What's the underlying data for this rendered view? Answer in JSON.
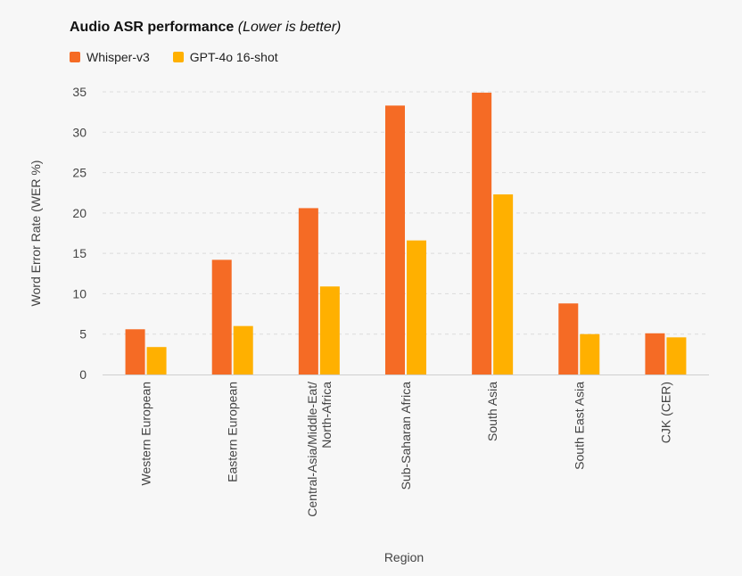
{
  "chart_data": {
    "type": "bar",
    "title": "Audio ASR performance",
    "subtitle": "(Lower is better)",
    "xlabel": "Region",
    "ylabel": "Word Error Rate (WER %)",
    "ylim": [
      0,
      35
    ],
    "yticks": [
      0,
      5,
      10,
      15,
      20,
      25,
      30,
      35
    ],
    "grid": true,
    "legend_position": "top-left",
    "categories": [
      [
        "Western European"
      ],
      [
        "Eastern European"
      ],
      [
        "Central-Asia/Middle-Eat/",
        "North-Africa"
      ],
      [
        "Sub-Saharan Africa"
      ],
      [
        "South Asia"
      ],
      [
        "South East Asia"
      ],
      [
        "CJK (CER)"
      ]
    ],
    "series": [
      {
        "name": "Whisper-v3",
        "color": "#f56b25",
        "values": [
          5.6,
          14.2,
          20.6,
          33.3,
          34.9,
          8.8,
          5.1
        ]
      },
      {
        "name": "GPT-4o 16-shot",
        "color": "#ffb000",
        "values": [
          3.4,
          6.0,
          10.9,
          16.6,
          22.3,
          5.0,
          4.6
        ]
      }
    ]
  }
}
